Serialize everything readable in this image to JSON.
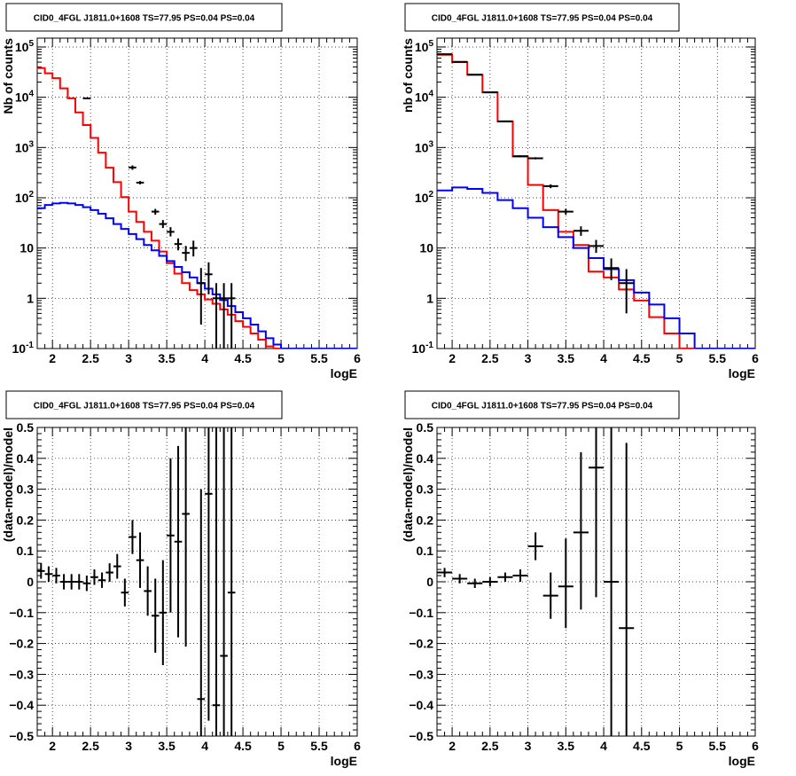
{
  "chart_data": [
    {
      "type": "histogram-log",
      "title": "CID0_4FGL J1811.0+1608 TS=77.95 PS=0.04 PS=0.04",
      "xlabel": "logE",
      "ylabel": "Nb of counts",
      "xlim": [
        1.8,
        6.0
      ],
      "ylim": [
        0.1,
        150000
      ],
      "log_y": true,
      "grid": true,
      "x_ticks": [
        "2",
        "2.5",
        "3",
        "3.5",
        "4",
        "4.5",
        "5",
        "5.5",
        "6"
      ],
      "y_ticks": [
        "10^-1",
        "1",
        "10",
        "10^2",
        "10^3",
        "10^4",
        "10^5"
      ],
      "bin_edges": [
        1.8,
        1.9,
        2.0,
        2.1,
        2.2,
        2.3,
        2.4,
        2.5,
        2.6,
        2.7,
        2.8,
        2.9,
        3.0,
        3.1,
        3.2,
        3.3,
        3.4,
        3.5,
        3.6,
        3.7,
        3.8,
        3.9,
        4.0,
        4.1,
        4.2,
        4.3,
        4.4,
        4.5,
        4.6,
        4.7,
        4.8,
        4.9,
        5.0,
        5.1,
        5.2,
        5.3,
        5.4,
        5.5,
        5.6,
        5.7,
        5.8,
        5.9,
        6.0
      ],
      "series": [
        {
          "color": "#ff0000",
          "style": "step",
          "values": [
            38000,
            30000,
            24000,
            15000,
            9500,
            5000,
            2800,
            1550,
            790,
            395,
            205,
            103,
            53,
            33,
            21,
            14,
            8.5,
            5.0,
            3.1,
            2.0,
            1.45,
            1.2,
            0.95,
            0.78,
            0.6,
            0.47,
            0.35,
            0.27,
            0.2,
            0.15,
            0.11,
            0.1,
            0.1,
            0.1,
            0.1,
            0.1,
            0.1,
            0.1,
            0.1,
            0.1,
            0.1,
            0.1
          ]
        },
        {
          "color": "#0000ff",
          "style": "step",
          "values": [
            62,
            72,
            77,
            79,
            77,
            72,
            65,
            57,
            48,
            39,
            30,
            24,
            19,
            15,
            11.5,
            9.0,
            7.0,
            5.5,
            4.2,
            3.3,
            2.6,
            2.0,
            1.55,
            1.2,
            0.92,
            0.7,
            0.53,
            0.4,
            0.3,
            0.22,
            0.16,
            0.12,
            0.1,
            0.1,
            0.1,
            0.1,
            0.1,
            0.1,
            0.1,
            0.1,
            0.1,
            0.1
          ]
        },
        {
          "color": "#000000",
          "style": "points",
          "points": [
            {
              "x": 2.45,
              "y": 9500,
              "lo": 9300,
              "hi": 9700
            },
            {
              "x": 3.05,
              "y": 400,
              "lo": 360,
              "hi": 440
            },
            {
              "x": 3.15,
              "y": 200,
              "lo": 185,
              "hi": 215
            },
            {
              "x": 3.35,
              "y": 53,
              "lo": 46,
              "hi": 60
            },
            {
              "x": 3.45,
              "y": 30,
              "lo": 25,
              "hi": 36
            },
            {
              "x": 3.55,
              "y": 21,
              "lo": 17,
              "hi": 26
            },
            {
              "x": 3.65,
              "y": 12,
              "lo": 9,
              "hi": 15.5
            },
            {
              "x": 3.75,
              "y": 8,
              "lo": 5.5,
              "hi": 11
            },
            {
              "x": 3.85,
              "y": 10,
              "lo": 6.8,
              "hi": 14
            },
            {
              "x": 3.95,
              "y": 2,
              "lo": 0.3,
              "hi": 4
            },
            {
              "x": 4.05,
              "y": 3,
              "lo": 1.2,
              "hi": 5.2
            },
            {
              "x": 4.15,
              "y": 1,
              "lo": 0.1,
              "hi": 2.0
            },
            {
              "x": 4.25,
              "y": 1,
              "lo": 0.1,
              "hi": 2.0
            },
            {
              "x": 4.35,
              "y": 1,
              "lo": 0.1,
              "hi": 2.0
            }
          ]
        }
      ]
    },
    {
      "type": "histogram-log",
      "title": "CID0_4FGL J1811.0+1608 TS=77.95 PS=0.04 PS=0.04",
      "xlabel": "logE",
      "ylabel": "nb of counts",
      "xlim": [
        1.8,
        6.0
      ],
      "ylim": [
        0.1,
        150000
      ],
      "log_y": true,
      "grid": true,
      "x_ticks": [
        "2",
        "2.5",
        "3",
        "3.5",
        "4",
        "4.5",
        "5",
        "5.5",
        "6"
      ],
      "y_ticks": [
        "10^-1",
        "1",
        "10",
        "10^2",
        "10^3",
        "10^4",
        "10^5"
      ],
      "bin_edges": [
        1.8,
        2.0,
        2.2,
        2.4,
        2.6,
        2.8,
        3.0,
        3.2,
        3.4,
        3.6,
        3.8,
        4.0,
        4.2,
        4.4,
        4.6,
        4.8,
        5.0,
        5.2,
        5.4,
        5.6,
        5.8,
        6.0
      ],
      "series": [
        {
          "color": "#ff0000",
          "style": "step",
          "values": [
            70000,
            50000,
            28000,
            12500,
            3300,
            660,
            180,
            57,
            21,
            11.5,
            3.4,
            2.6,
            1.5,
            0.9,
            0.42,
            0.2,
            0.1,
            0.1,
            0.1,
            0.1,
            0.1
          ]
        },
        {
          "color": "#0000ff",
          "style": "step",
          "values": [
            140,
            160,
            150,
            125,
            90,
            62,
            40,
            26,
            16.5,
            10,
            6.3,
            3.8,
            2.3,
            1.3,
            0.75,
            0.4,
            0.2,
            0.1,
            0.1,
            0.1,
            0.1
          ]
        },
        {
          "color": "#000000",
          "style": "points",
          "points": [
            {
              "x": 1.9,
              "y": 72000,
              "lo": 71000,
              "hi": 73000
            },
            {
              "x": 2.1,
              "y": 50500,
              "lo": 49800,
              "hi": 51200
            },
            {
              "x": 2.3,
              "y": 28000,
              "lo": 27500,
              "hi": 28500
            },
            {
              "x": 2.5,
              "y": 12500,
              "lo": 12300,
              "hi": 12700
            },
            {
              "x": 2.7,
              "y": 3300,
              "lo": 3250,
              "hi": 3350
            },
            {
              "x": 2.9,
              "y": 670,
              "lo": 640,
              "hi": 700
            },
            {
              "x": 3.1,
              "y": 610,
              "lo": 580,
              "hi": 640
            },
            {
              "x": 3.3,
              "y": 170,
              "lo": 155,
              "hi": 185
            },
            {
              "x": 3.5,
              "y": 53,
              "lo": 46,
              "hi": 60
            },
            {
              "x": 3.7,
              "y": 22,
              "lo": 17.5,
              "hi": 27
            },
            {
              "x": 3.9,
              "y": 11,
              "lo": 8,
              "hi": 14.5
            },
            {
              "x": 4.1,
              "y": 4,
              "lo": 2.3,
              "hi": 6.2
            },
            {
              "x": 4.3,
              "y": 2,
              "lo": 0.5,
              "hi": 3.8
            }
          ]
        }
      ]
    },
    {
      "type": "scatter-errorbars",
      "title": "CID0_4FGL J1811.0+1608 TS=77.95 PS=0.04 PS=0.04",
      "xlabel": "logE",
      "ylabel": "(data-model)/model",
      "xlim": [
        1.8,
        6.0
      ],
      "ylim": [
        -0.5,
        0.5
      ],
      "grid": true,
      "x_ticks": [
        "2",
        "2.5",
        "3",
        "3.5",
        "4",
        "4.5",
        "5",
        "5.5",
        "6"
      ],
      "y_ticks": [
        "-0.5",
        "-0.4",
        "-0.3",
        "-0.2",
        "-0.1",
        "0",
        "0.1",
        "0.2",
        "0.3",
        "0.4",
        "0.5"
      ],
      "points": [
        {
          "x": 1.85,
          "y": 0.035,
          "lo": 0.01,
          "hi": 0.06,
          "hw": 0.05
        },
        {
          "x": 1.95,
          "y": 0.025,
          "lo": 0.0,
          "hi": 0.05,
          "hw": 0.05
        },
        {
          "x": 2.05,
          "y": 0.02,
          "lo": -0.005,
          "hi": 0.045,
          "hw": 0.05
        },
        {
          "x": 2.15,
          "y": 0.0,
          "lo": -0.025,
          "hi": 0.025,
          "hw": 0.05
        },
        {
          "x": 2.25,
          "y": 0.0,
          "lo": -0.025,
          "hi": 0.025,
          "hw": 0.05
        },
        {
          "x": 2.35,
          "y": 0.0,
          "lo": -0.025,
          "hi": 0.025,
          "hw": 0.05
        },
        {
          "x": 2.45,
          "y": -0.005,
          "lo": -0.03,
          "hi": 0.02,
          "hw": 0.05
        },
        {
          "x": 2.55,
          "y": 0.015,
          "lo": -0.01,
          "hi": 0.04,
          "hw": 0.05
        },
        {
          "x": 2.65,
          "y": 0.005,
          "lo": -0.02,
          "hi": 0.03,
          "hw": 0.05
        },
        {
          "x": 2.75,
          "y": 0.03,
          "lo": 0.0,
          "hi": 0.06,
          "hw": 0.05
        },
        {
          "x": 2.85,
          "y": 0.05,
          "lo": 0.01,
          "hi": 0.09,
          "hw": 0.05
        },
        {
          "x": 2.95,
          "y": -0.035,
          "lo": -0.08,
          "hi": 0.01,
          "hw": 0.05
        },
        {
          "x": 3.05,
          "y": 0.145,
          "lo": 0.09,
          "hi": 0.2,
          "hw": 0.05
        },
        {
          "x": 3.15,
          "y": 0.07,
          "lo": -0.02,
          "hi": 0.16,
          "hw": 0.05
        },
        {
          "x": 3.25,
          "y": -0.03,
          "lo": -0.11,
          "hi": 0.05,
          "hw": 0.05
        },
        {
          "x": 3.35,
          "y": -0.11,
          "lo": -0.23,
          "hi": 0.01,
          "hw": 0.05
        },
        {
          "x": 3.45,
          "y": -0.1,
          "lo": -0.27,
          "hi": 0.07,
          "hw": 0.05
        },
        {
          "x": 3.55,
          "y": 0.15,
          "lo": -0.1,
          "hi": 0.4,
          "hw": 0.05
        },
        {
          "x": 3.65,
          "y": 0.13,
          "lo": -0.18,
          "hi": 0.44,
          "hw": 0.05
        },
        {
          "x": 3.75,
          "y": 0.22,
          "lo": -0.21,
          "hi": 0.5,
          "hw": 0.05
        },
        {
          "x": 3.95,
          "y": -0.38,
          "lo": -0.5,
          "hi": 0.3,
          "hw": 0.05
        },
        {
          "x": 4.05,
          "y": 0.285,
          "lo": -0.45,
          "hi": 0.5,
          "hw": 0.05
        },
        {
          "x": 4.15,
          "y": -0.4,
          "lo": -0.5,
          "hi": 0.5,
          "hw": 0.05
        },
        {
          "x": 4.25,
          "y": -0.24,
          "lo": -0.5,
          "hi": 0.5,
          "hw": 0.05
        },
        {
          "x": 4.35,
          "y": -0.035,
          "lo": -0.5,
          "hi": 0.5,
          "hw": 0.05
        }
      ]
    },
    {
      "type": "scatter-errorbars",
      "title": "CID0_4FGL J1811.0+1608 TS=77.95 PS=0.04 PS=0.04",
      "xlabel": "logE",
      "ylabel": "(data-model)/model",
      "xlim": [
        1.8,
        6.0
      ],
      "ylim": [
        -0.5,
        0.5
      ],
      "grid": true,
      "x_ticks": [
        "2",
        "2.5",
        "3",
        "3.5",
        "4",
        "4.5",
        "5",
        "5.5",
        "6"
      ],
      "y_ticks": [
        "-0.5",
        "-0.4",
        "-0.3",
        "-0.2",
        "-0.1",
        "0",
        "0.1",
        "0.2",
        "0.3",
        "0.4",
        "0.5"
      ],
      "points": [
        {
          "x": 1.9,
          "y": 0.03,
          "lo": 0.015,
          "hi": 0.045,
          "hw": 0.1
        },
        {
          "x": 2.1,
          "y": 0.01,
          "lo": -0.005,
          "hi": 0.025,
          "hw": 0.1
        },
        {
          "x": 2.3,
          "y": -0.005,
          "lo": -0.02,
          "hi": 0.01,
          "hw": 0.1
        },
        {
          "x": 2.5,
          "y": 0.0,
          "lo": -0.015,
          "hi": 0.015,
          "hw": 0.1
        },
        {
          "x": 2.7,
          "y": 0.015,
          "lo": 0.0,
          "hi": 0.03,
          "hw": 0.1
        },
        {
          "x": 2.9,
          "y": 0.02,
          "lo": 0.0,
          "hi": 0.04,
          "hw": 0.1
        },
        {
          "x": 3.1,
          "y": 0.115,
          "lo": 0.07,
          "hi": 0.16,
          "hw": 0.1
        },
        {
          "x": 3.3,
          "y": -0.045,
          "lo": -0.12,
          "hi": 0.03,
          "hw": 0.1
        },
        {
          "x": 3.5,
          "y": -0.015,
          "lo": -0.15,
          "hi": 0.14,
          "hw": 0.1
        },
        {
          "x": 3.7,
          "y": 0.16,
          "lo": -0.09,
          "hi": 0.42,
          "hw": 0.1
        },
        {
          "x": 3.9,
          "y": 0.37,
          "lo": -0.05,
          "hi": 0.5,
          "hw": 0.1
        },
        {
          "x": 4.1,
          "y": 0.0,
          "lo": -0.5,
          "hi": 0.5,
          "hw": 0.1
        },
        {
          "x": 4.3,
          "y": -0.15,
          "lo": -0.5,
          "hi": 0.45,
          "hw": 0.1
        }
      ]
    }
  ]
}
